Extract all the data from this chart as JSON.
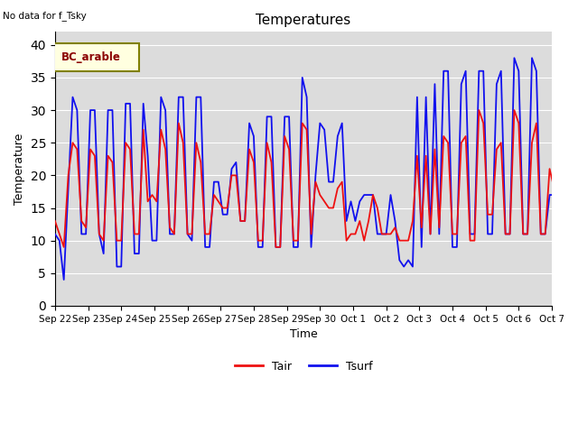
{
  "title": "Temperatures",
  "top_left_text": "No data for f_Tsky",
  "legend_box_text": "BC_arable",
  "xlabel": "Time",
  "ylabel": "Temperature",
  "ylim": [
    0,
    42
  ],
  "yticks": [
    0,
    5,
    10,
    15,
    20,
    25,
    30,
    35,
    40
  ],
  "tair_color": "#EE1111",
  "tsurf_color": "#1111EE",
  "background_color": "#DCDCDC",
  "legend_labels": [
    "Tair",
    "Tsurf"
  ],
  "n_days": 16,
  "tair_values": [
    13,
    11,
    9,
    20,
    25,
    24,
    13,
    12,
    24,
    23,
    11,
    10,
    23,
    22,
    10,
    10,
    25,
    24,
    11,
    11,
    27,
    16,
    17,
    16,
    27,
    24,
    12,
    11,
    28,
    25,
    11,
    11,
    25,
    22,
    11,
    11,
    17,
    16,
    15,
    15,
    20,
    20,
    13,
    13,
    24,
    22,
    10,
    10,
    25,
    22,
    9,
    9,
    26,
    24,
    10,
    10,
    28,
    27,
    11,
    19,
    17,
    16,
    15,
    15,
    18,
    19,
    10,
    11,
    11,
    13,
    10,
    13,
    17,
    15,
    11,
    11,
    11,
    12,
    10,
    10,
    10,
    13,
    23,
    12,
    23,
    11,
    24,
    12,
    26,
    25,
    11,
    11,
    25,
    26,
    10,
    10,
    30,
    28,
    14,
    14,
    24,
    25,
    11,
    11,
    30,
    28,
    11,
    11,
    25,
    28,
    11,
    11,
    21,
    18,
    11,
    11,
    18,
    17,
    11,
    11
  ],
  "tsurf_values": [
    11,
    10,
    4,
    18,
    32,
    30,
    11,
    11,
    30,
    30,
    11,
    8,
    30,
    30,
    6,
    6,
    31,
    31,
    8,
    8,
    31,
    23,
    10,
    10,
    32,
    30,
    11,
    11,
    32,
    32,
    11,
    10,
    32,
    32,
    9,
    9,
    19,
    19,
    14,
    14,
    21,
    22,
    13,
    13,
    28,
    26,
    9,
    9,
    29,
    29,
    9,
    9,
    29,
    29,
    9,
    9,
    35,
    32,
    9,
    20,
    28,
    27,
    19,
    19,
    26,
    28,
    13,
    16,
    13,
    16,
    17,
    17,
    17,
    11,
    11,
    11,
    17,
    13,
    7,
    6,
    7,
    6,
    32,
    9,
    32,
    11,
    34,
    11,
    36,
    36,
    9,
    9,
    34,
    36,
    11,
    11,
    36,
    36,
    11,
    11,
    34,
    36,
    11,
    11,
    38,
    36,
    11,
    11,
    38,
    36,
    11,
    11,
    17,
    17,
    11,
    11,
    17,
    12,
    11,
    11
  ]
}
